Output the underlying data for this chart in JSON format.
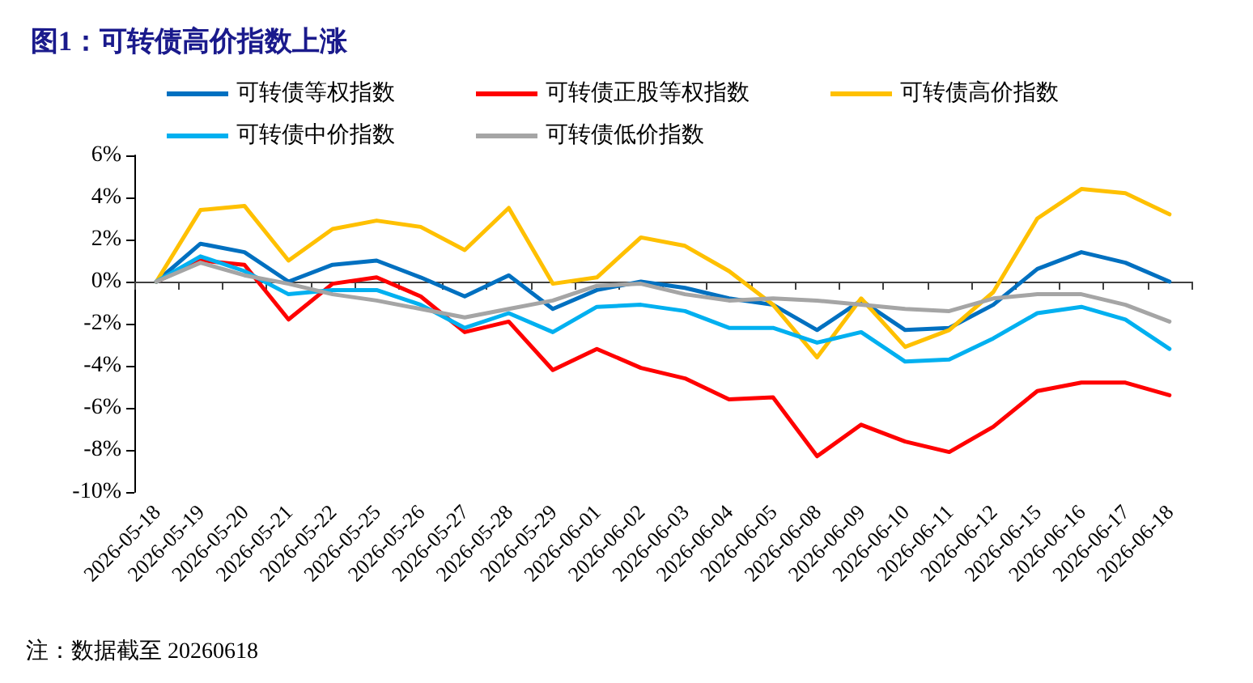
{
  "chart_data": {
    "type": "line",
    "title": "图1：可转债高价指数上涨",
    "annotations": [
      "注：数据截至 20260618"
    ],
    "categories": [
      "2026-05-18",
      "2026-05-19",
      "2026-05-20",
      "2026-05-21",
      "2026-05-22",
      "2026-05-25",
      "2026-05-26",
      "2026-05-27",
      "2026-05-28",
      "2026-05-29",
      "2026-06-01",
      "2026-06-02",
      "2026-06-03",
      "2026-06-04",
      "2026-06-05",
      "2026-06-08",
      "2026-06-09",
      "2026-06-10",
      "2026-06-11",
      "2026-06-12",
      "2026-06-15",
      "2026-06-16",
      "2026-06-17",
      "2026-06-18"
    ],
    "series": [
      {
        "name": "可转债等权指数",
        "color": "#0070c0",
        "values": [
          0,
          1.8,
          1.4,
          0.0,
          0.8,
          1.0,
          0.2,
          -0.7,
          0.3,
          -1.3,
          -0.4,
          0.0,
          -0.3,
          -0.8,
          -1.1,
          -2.3,
          -0.9,
          -2.3,
          -2.2,
          -1.1,
          0.6,
          1.4,
          0.9,
          0.0
        ]
      },
      {
        "name": "可转债正股等权指数",
        "color": "#ff0000",
        "values": [
          0,
          1.0,
          0.8,
          -1.8,
          -0.1,
          0.2,
          -0.7,
          -2.4,
          -1.9,
          -4.2,
          -3.2,
          -4.1,
          -4.6,
          -5.6,
          -5.5,
          -8.3,
          -6.8,
          -7.6,
          -8.1,
          -6.9,
          -5.2,
          -4.8,
          -4.8,
          -5.4
        ]
      },
      {
        "name": "可转债高价指数",
        "color": "#ffc000",
        "values": [
          0,
          3.4,
          3.6,
          1.0,
          2.5,
          2.9,
          2.6,
          1.5,
          3.5,
          -0.1,
          0.2,
          2.1,
          1.7,
          0.5,
          -1.1,
          -3.6,
          -0.8,
          -3.1,
          -2.3,
          -0.5,
          3.0,
          4.4,
          4.2,
          3.2
        ]
      },
      {
        "name": "可转债中价指数",
        "color": "#00b0f0",
        "values": [
          0,
          1.2,
          0.5,
          -0.6,
          -0.4,
          -0.4,
          -1.1,
          -2.2,
          -1.5,
          -2.4,
          -1.2,
          -1.1,
          -1.4,
          -2.2,
          -2.2,
          -2.9,
          -2.4,
          -3.8,
          -3.7,
          -2.7,
          -1.5,
          -1.2,
          -1.8,
          -3.2
        ]
      },
      {
        "name": "可转债低价指数",
        "color": "#a5a5a5",
        "values": [
          0,
          0.9,
          0.3,
          -0.1,
          -0.6,
          -0.9,
          -1.3,
          -1.7,
          -1.3,
          -0.9,
          -0.2,
          -0.1,
          -0.6,
          -0.9,
          -0.8,
          -0.9,
          -1.1,
          -1.3,
          -1.4,
          -0.8,
          -0.6,
          -0.6,
          -1.1,
          -1.9
        ]
      }
    ],
    "ylim": [
      -10,
      6
    ],
    "yticks": [
      {
        "value": -10,
        "label": "-10%"
      },
      {
        "value": -8,
        "label": "-8%"
      },
      {
        "value": -6,
        "label": "-6%"
      },
      {
        "value": -4,
        "label": "-4%"
      },
      {
        "value": -2,
        "label": "-2%"
      },
      {
        "value": 0,
        "label": "0%"
      },
      {
        "value": 2,
        "label": "2%"
      },
      {
        "value": 4,
        "label": "4%"
      },
      {
        "value": 6,
        "label": "6%"
      }
    ],
    "legend": "top",
    "marker": "none",
    "line_style": "solid"
  }
}
